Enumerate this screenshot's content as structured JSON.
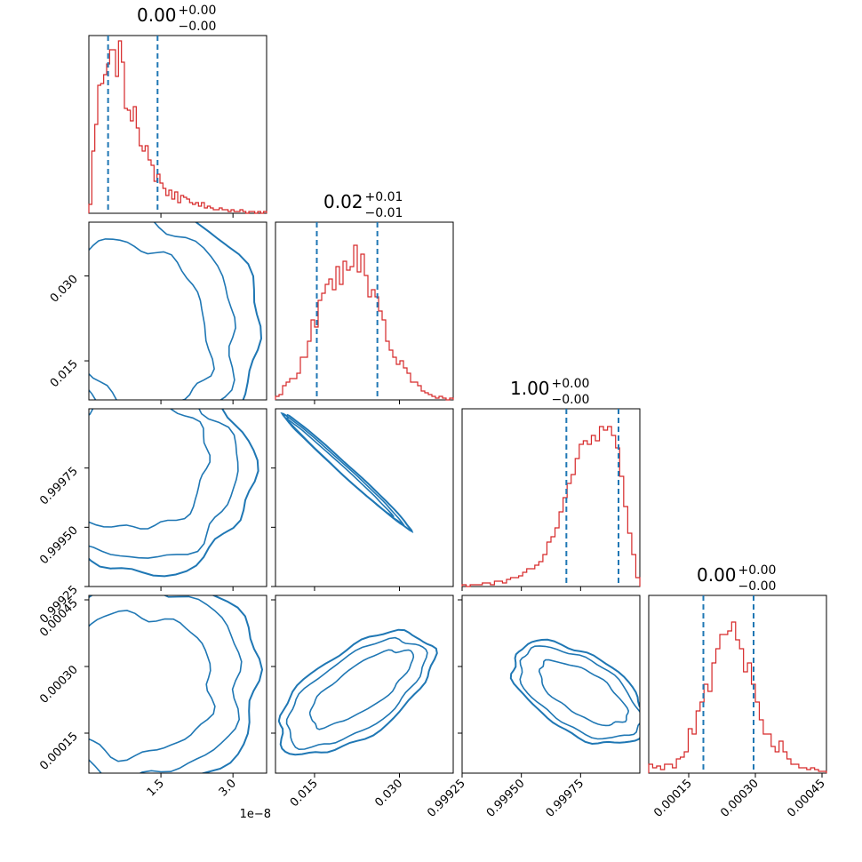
{
  "chart_data": {
    "type": "corner",
    "parameters": [
      {
        "title": {
          "median": "0.00",
          "plus": "+0.00",
          "minus": "−0.00"
        },
        "xrange": [
          0.0,
          3.7e-08
        ],
        "xticks": [
          {
            "value": 1.5e-08,
            "label": "1.5"
          },
          {
            "value": 3e-08,
            "label": "3.0"
          }
        ],
        "offset_label": "1e−8",
        "quantiles": [
          4e-09,
          1.43e-08
        ],
        "hist": [
          0.05,
          0.35,
          0.5,
          0.72,
          0.73,
          0.78,
          0.84,
          0.92,
          0.92,
          0.77,
          0.97,
          0.85,
          0.59,
          0.58,
          0.52,
          0.6,
          0.48,
          0.38,
          0.35,
          0.38,
          0.3,
          0.27,
          0.18,
          0.22,
          0.17,
          0.14,
          0.1,
          0.13,
          0.08,
          0.12,
          0.06,
          0.1,
          0.09,
          0.08,
          0.06,
          0.05,
          0.06,
          0.04,
          0.06,
          0.03,
          0.04,
          0.03,
          0.02,
          0.02,
          0.03,
          0.02,
          0.02,
          0.01,
          0.02,
          0.01,
          0.01,
          0.02,
          0.01,
          0.0,
          0.01,
          0.01,
          0.0,
          0.01,
          0.0,
          0.01
        ]
      },
      {
        "title": {
          "median": "0.02",
          "plus": "+0.01",
          "minus": "−0.01"
        },
        "xrange": [
          0.0081,
          0.0395
        ],
        "xticks": [
          {
            "value": 0.015,
            "label": "0.015"
          },
          {
            "value": 0.03,
            "label": "0.030"
          }
        ],
        "yticks": [
          {
            "value": 0.015,
            "label": "0.015"
          },
          {
            "value": 0.03,
            "label": "0.030"
          }
        ],
        "quantiles": [
          0.0154,
          0.0261
        ],
        "hist": [
          0.02,
          0.03,
          0.08,
          0.1,
          0.12,
          0.12,
          0.15,
          0.24,
          0.24,
          0.33,
          0.45,
          0.41,
          0.56,
          0.6,
          0.65,
          0.68,
          0.62,
          0.75,
          0.65,
          0.78,
          0.73,
          0.75,
          0.87,
          0.72,
          0.82,
          0.7,
          0.58,
          0.62,
          0.58,
          0.5,
          0.45,
          0.33,
          0.28,
          0.24,
          0.2,
          0.22,
          0.18,
          0.15,
          0.1,
          0.1,
          0.08,
          0.05,
          0.04,
          0.03,
          0.02,
          0.01,
          0.02,
          0.01,
          0.0,
          0.01
        ]
      },
      {
        "title": {
          "median": "1.00",
          "plus": "+0.00",
          "minus": "−0.00"
        },
        "xrange": [
          0.99925,
          1.0
        ],
        "xticks": [
          {
            "value": 0.99925,
            "label": "0.99925"
          },
          {
            "value": 0.9995,
            "label": "0.99950"
          },
          {
            "value": 0.99975,
            "label": "0.99975"
          }
        ],
        "yticks": [
          {
            "value": 0.99925,
            "label": "0.99925"
          },
          {
            "value": 0.9995,
            "label": "0.99950"
          },
          {
            "value": 0.99975,
            "label": "0.99975"
          }
        ],
        "quantiles": [
          0.99969,
          0.99991
        ],
        "hist": [
          0.01,
          0.0,
          0.01,
          0.01,
          0.01,
          0.02,
          0.02,
          0.01,
          0.03,
          0.03,
          0.02,
          0.04,
          0.05,
          0.05,
          0.06,
          0.08,
          0.1,
          0.1,
          0.12,
          0.14,
          0.18,
          0.25,
          0.28,
          0.33,
          0.42,
          0.5,
          0.58,
          0.63,
          0.72,
          0.8,
          0.82,
          0.8,
          0.85,
          0.82,
          0.9,
          0.88,
          0.9,
          0.85,
          0.78,
          0.62,
          0.45,
          0.3,
          0.18,
          0.05
        ]
      },
      {
        "title": {
          "median": "0.00",
          "plus": "+0.00",
          "minus": "−0.00"
        },
        "xrange": [
          6e-05,
          0.00046
        ],
        "xticks": [
          {
            "value": 0.00015,
            "label": "0.00015"
          },
          {
            "value": 0.0003,
            "label": "0.00030"
          },
          {
            "value": 0.00045,
            "label": "0.00045"
          }
        ],
        "yticks": [
          {
            "value": 0.00015,
            "label": "0.00015"
          },
          {
            "value": 0.0003,
            "label": "0.00030"
          },
          {
            "value": 0.00045,
            "label": "0.00045"
          }
        ],
        "quantiles": [
          0.000183,
          0.000296
        ],
        "hist": [
          0.05,
          0.03,
          0.04,
          0.02,
          0.05,
          0.05,
          0.03,
          0.08,
          0.09,
          0.12,
          0.25,
          0.22,
          0.35,
          0.4,
          0.5,
          0.46,
          0.62,
          0.7,
          0.78,
          0.78,
          0.8,
          0.85,
          0.75,
          0.7,
          0.57,
          0.62,
          0.5,
          0.4,
          0.3,
          0.22,
          0.22,
          0.15,
          0.12,
          0.18,
          0.12,
          0.08,
          0.05,
          0.05,
          0.03,
          0.03,
          0.02,
          0.03,
          0.02,
          0.01,
          0.01
        ]
      }
    ]
  }
}
